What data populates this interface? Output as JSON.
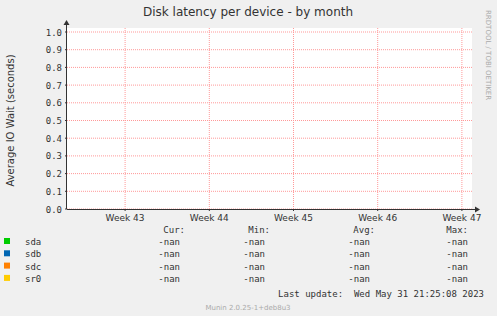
{
  "chart_data": {
    "type": "line",
    "title": "Disk latency per device - by month",
    "y_label": "Average IO Wait (seconds)",
    "side_label": "RRDTOOL / TOBI OETIKER",
    "x": [
      43,
      44,
      45,
      46,
      47
    ],
    "xlim": [
      42.31,
      47.12
    ],
    "xticks": [
      {
        "value": 43,
        "label": "Week 43"
      },
      {
        "value": 44,
        "label": "Week 44"
      },
      {
        "value": 45,
        "label": "Week 45"
      },
      {
        "value": 46,
        "label": "Week 46"
      },
      {
        "value": 47,
        "label": "Week 47"
      }
    ],
    "ylim": [
      0,
      1
    ],
    "yticks": [
      {
        "value": 0,
        "label": "0.0"
      },
      0.1,
      0.2,
      0.3,
      0.4,
      0.5,
      0.6,
      0.7,
      0.8,
      0.9,
      {
        "value": 1,
        "label": "1.0"
      }
    ],
    "grid": true,
    "legend": "bottom",
    "stat_headers": [
      "Cur:",
      "Min:",
      "Avg:",
      "Max:"
    ],
    "series": [
      {
        "name": "sda",
        "color": "#00cc00",
        "values": [
          null,
          null,
          null,
          null,
          null
        ],
        "stats": [
          "-nan",
          "-nan",
          "-nan",
          "-nan"
        ]
      },
      {
        "name": "sdb",
        "color": "#0066b3",
        "values": [
          null,
          null,
          null,
          null,
          null
        ],
        "stats": [
          "-nan",
          "-nan",
          "-nan",
          "-nan"
        ]
      },
      {
        "name": "sdc",
        "color": "#ff8000",
        "values": [
          null,
          null,
          null,
          null,
          null
        ],
        "stats": [
          "-nan",
          "-nan",
          "-nan",
          "-nan"
        ]
      },
      {
        "name": "sr0",
        "color": "#ffcc00",
        "values": [
          null,
          null,
          null,
          null,
          null
        ],
        "stats": [
          "-nan",
          "-nan",
          "-nan",
          "-nan"
        ]
      }
    ],
    "last_update": "Last update:  Wed May 31 21:25:08 2023",
    "footer": "Munin 2.0.25-1+deb8u3"
  }
}
